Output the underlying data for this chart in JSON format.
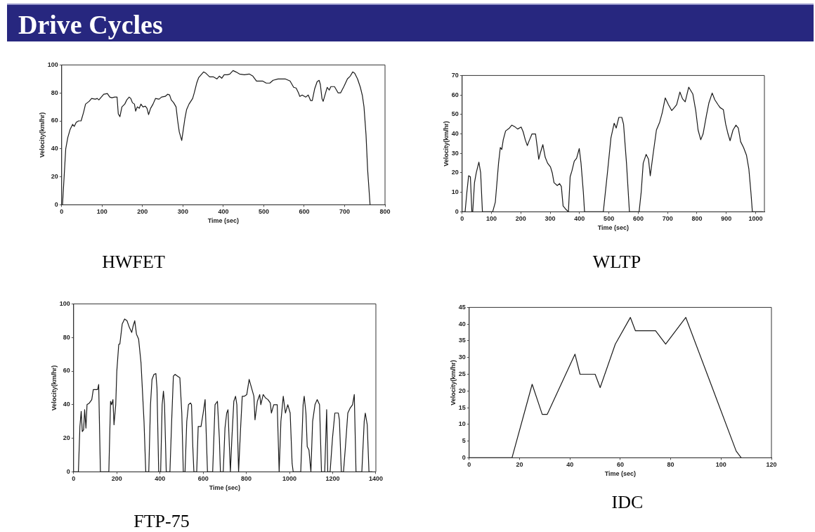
{
  "chart_data": [
    {
      "type": "line",
      "title": "HWFET",
      "annotations": [
        "Drive Cycles"
      ],
      "xlabel": "Time (sec)",
      "ylabel": "Velocity(km/hr)",
      "color": "#1a1a1a",
      "xlim": [
        0,
        800
      ],
      "ylim": [
        0,
        100
      ],
      "xticks": [
        0,
        100,
        200,
        300,
        400,
        500,
        600,
        700,
        800
      ],
      "yticks": [
        0,
        20,
        40,
        60,
        80,
        100
      ],
      "x": [
        2,
        6,
        10,
        15,
        21,
        27,
        31,
        36,
        42,
        48,
        54,
        59,
        68,
        74,
        83,
        88,
        92,
        98,
        104,
        113,
        119,
        124,
        131,
        137,
        140,
        144,
        149,
        156,
        161,
        167,
        171,
        175,
        180,
        183,
        187,
        192,
        196,
        201,
        207,
        211,
        215,
        220,
        226,
        232,
        241,
        247,
        256,
        262,
        267,
        271,
        277,
        283,
        287,
        291,
        297,
        300,
        305,
        309,
        315,
        324,
        328,
        334,
        339,
        345,
        351,
        357,
        366,
        375,
        384,
        390,
        396,
        402,
        410,
        416,
        424,
        431,
        440,
        452,
        464,
        473,
        482,
        497,
        506,
        515,
        523,
        535,
        553,
        565,
        574,
        580,
        586,
        589,
        595,
        604,
        610,
        616,
        620,
        626,
        632,
        637,
        640,
        644,
        647,
        653,
        657,
        662,
        666,
        675,
        684,
        690,
        699,
        707,
        714,
        720,
        725,
        732,
        739,
        744,
        748,
        753,
        757,
        763
      ],
      "values": [
        0,
        20,
        40,
        48,
        54,
        57.5,
        56,
        59,
        60,
        60,
        66,
        72,
        74,
        76,
        75.5,
        76,
        75,
        77,
        79,
        79.5,
        77,
        76.5,
        77,
        77,
        65,
        63,
        70,
        72,
        75,
        77,
        76,
        73,
        72,
        67,
        70,
        69,
        72,
        70,
        70.5,
        69,
        64.5,
        69,
        72,
        76,
        75.5,
        77,
        77.5,
        79,
        78.5,
        75,
        73,
        70,
        60,
        52,
        46,
        52,
        62,
        68,
        72,
        76,
        80,
        87,
        91,
        93,
        95,
        94,
        91.5,
        91.5,
        90,
        92,
        90.5,
        93,
        93,
        93.5,
        96,
        95,
        93.5,
        93,
        93.5,
        92,
        88.5,
        88.5,
        87,
        87,
        89,
        90,
        90,
        88.5,
        84,
        83.5,
        80,
        77.5,
        78.5,
        77,
        78.5,
        74.5,
        74.5,
        83,
        88,
        89,
        86,
        76,
        74,
        80,
        84,
        82,
        84.5,
        84.5,
        80,
        80,
        85,
        90,
        92,
        95,
        94,
        90,
        84,
        78,
        70,
        50,
        25,
        0
      ]
    },
    {
      "type": "line",
      "title": "WLTP",
      "xlabel": "Time (sec)",
      "ylabel": "Velocity(km/hr)",
      "color": "#1a1a1a",
      "xlim": [
        0,
        1030
      ],
      "ylim": [
        0,
        70
      ],
      "xticks": [
        0,
        100,
        200,
        300,
        400,
        500,
        600,
        700,
        800,
        900,
        1000
      ],
      "yticks": [
        0,
        10,
        20,
        30,
        40,
        50,
        60,
        70
      ],
      "x": [
        0,
        10,
        16,
        22,
        28,
        33,
        36,
        42,
        48,
        57,
        63,
        69,
        104,
        113,
        124,
        130,
        135,
        140,
        148,
        161,
        169,
        181,
        189,
        201,
        208,
        215,
        222,
        227,
        238,
        250,
        256,
        261,
        266,
        275,
        283,
        291,
        301,
        307,
        313,
        324,
        332,
        338,
        344,
        352,
        362,
        368,
        374,
        382,
        390,
        399,
        405,
        413,
        417,
        481,
        495,
        507,
        518,
        525,
        534,
        544,
        550,
        560,
        570,
        603,
        610,
        617,
        627,
        635,
        641,
        651,
        662,
        673,
        682,
        692,
        703,
        714,
        723,
        731,
        742,
        751,
        760,
        772,
        786,
        796,
        804,
        813,
        821,
        833,
        841,
        852,
        861,
        872,
        879,
        890,
        898,
        906,
        913,
        923,
        933,
        941,
        949,
        959,
        969,
        977,
        984,
        989,
        1025
      ],
      "values": [
        0,
        0,
        10,
        18.5,
        18,
        0,
        0,
        15,
        20,
        25.5,
        20,
        0,
        0,
        5,
        25,
        33,
        32,
        37,
        41.5,
        43,
        44.5,
        43.5,
        42.5,
        43.5,
        41,
        37,
        34,
        36,
        40,
        40,
        33,
        27,
        30,
        34.5,
        28,
        25,
        23,
        20,
        15,
        13.5,
        14.5,
        13,
        3,
        1.5,
        0,
        18,
        21,
        26,
        27.5,
        32.5,
        25,
        10,
        0,
        0,
        20,
        38,
        45.5,
        43,
        48.5,
        48.5,
        45,
        25,
        0,
        0,
        10,
        25,
        29.5,
        27,
        18.5,
        30,
        42,
        46,
        51,
        58.5,
        55,
        52,
        53.5,
        55,
        61.5,
        58,
        56.5,
        64,
        60.5,
        52,
        42,
        37,
        40,
        50,
        56,
        61,
        57.5,
        55,
        53.5,
        52.5,
        45,
        40,
        36.5,
        42,
        44.5,
        43,
        36,
        33,
        29,
        22,
        10,
        0,
        0
      ]
    },
    {
      "type": "line",
      "title": "FTP-75",
      "xlabel": "Time (sec)",
      "ylabel": "Velocity(km/hr)",
      "color": "#1a1a1a",
      "xlim": [
        0,
        1400
      ],
      "ylim": [
        0,
        100
      ],
      "xticks": [
        0,
        200,
        400,
        600,
        800,
        1000,
        1200,
        1400
      ],
      "yticks": [
        0,
        20,
        40,
        60,
        80,
        100
      ],
      "x": [
        0,
        22,
        29,
        35,
        40,
        46,
        51,
        57,
        62,
        73,
        84,
        91,
        100,
        111,
        116,
        124,
        163,
        171,
        176,
        182,
        187,
        195,
        200,
        209,
        214,
        225,
        236,
        247,
        258,
        269,
        276,
        283,
        291,
        301,
        312,
        318,
        326,
        334,
        348,
        356,
        363,
        372,
        381,
        386,
        394,
        403,
        410,
        416,
        421,
        429,
        446,
        454,
        462,
        470,
        481,
        492,
        501,
        508,
        516,
        524,
        532,
        541,
        546,
        552,
        557,
        570,
        577,
        590,
        600,
        609,
        620,
        644,
        655,
        666,
        675,
        680,
        693,
        701,
        709,
        715,
        720,
        726,
        733,
        742,
        750,
        756,
        764,
        773,
        781,
        791,
        802,
        813,
        824,
        835,
        840,
        851,
        862,
        867,
        878,
        889,
        900,
        911,
        916,
        927,
        943,
        952,
        960,
        971,
        981,
        992,
        1003,
        1012,
        1017,
        1052,
        1063,
        1068,
        1076,
        1082,
        1090,
        1099,
        1107,
        1118,
        1128,
        1139,
        1148,
        1163,
        1172,
        1177,
        1188,
        1199,
        1210,
        1226,
        1231,
        1240,
        1250,
        1259,
        1270,
        1281,
        1292,
        1300,
        1308,
        1335,
        1346,
        1351,
        1360,
        1368,
        1384
      ],
      "values": [
        0,
        0,
        27,
        36,
        24,
        25,
        37,
        26,
        40,
        41,
        43,
        49,
        49,
        49,
        52,
        0,
        0,
        42,
        40,
        43,
        28,
        40,
        60,
        76,
        76,
        88,
        91,
        90,
        86,
        83,
        87,
        90,
        82,
        79,
        65,
        50,
        30,
        0,
        0,
        40,
        55,
        58,
        58.5,
        50,
        0,
        0,
        40,
        48,
        40,
        0,
        0,
        30,
        57,
        58,
        57,
        56,
        35,
        0,
        0,
        30,
        40,
        41,
        40,
        15,
        0,
        0,
        27,
        27,
        35,
        43,
        0,
        0,
        40,
        42,
        20,
        0,
        0,
        26,
        35,
        37,
        20,
        0,
        20,
        42,
        45,
        40,
        0,
        25,
        45,
        45,
        46,
        55,
        50,
        45,
        31,
        42,
        46,
        40,
        46,
        44,
        43,
        41,
        35,
        40,
        40,
        0,
        30,
        45,
        35,
        40,
        35,
        5,
        0,
        0,
        40,
        45,
        35,
        15,
        13,
        0,
        30,
        40,
        43,
        40,
        0,
        0,
        37,
        0,
        0,
        20,
        35,
        35,
        31,
        0,
        0,
        15,
        35,
        38,
        40,
        46,
        0,
        0,
        30,
        35,
        28,
        0,
        0
      ]
    },
    {
      "type": "line",
      "title": "IDC",
      "xlabel": "Time (sec)",
      "ylabel": "Velocity(km/hr)",
      "color": "#1a1a1a",
      "xlim": [
        0,
        120
      ],
      "ylim": [
        0,
        45
      ],
      "xticks": [
        0,
        20,
        40,
        60,
        80,
        100,
        120
      ],
      "yticks": [
        0,
        5,
        10,
        15,
        20,
        25,
        30,
        35,
        40,
        45
      ],
      "x": [
        0,
        17,
        25,
        29,
        31,
        42,
        44,
        50,
        52,
        58,
        64,
        66,
        74,
        78,
        86,
        106,
        108
      ],
      "values": [
        0,
        0,
        22,
        13,
        13,
        31,
        25,
        25,
        21,
        34,
        42,
        38,
        38,
        34,
        42,
        2,
        0
      ]
    }
  ]
}
